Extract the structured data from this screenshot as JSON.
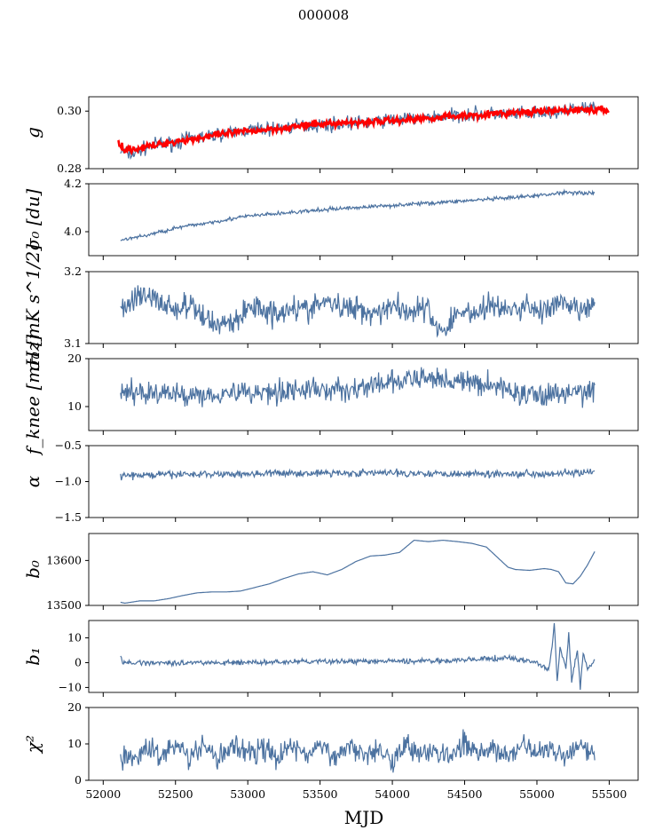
{
  "figure": {
    "title": "000008",
    "xlabel": "MJD"
  },
  "chart_data": [
    {
      "type": "line",
      "ylabel": "g",
      "xlim": [
        51900,
        55700
      ],
      "ylim": [
        0.28,
        0.305
      ],
      "yticks": [
        0.28,
        0.3
      ],
      "ytick_labels": [
        "0.28",
        "0.30"
      ],
      "series": [
        {
          "color": "#4c72a0",
          "x": [
            52120,
            52200,
            52300,
            52400,
            52500,
            52600,
            52700,
            52800,
            52900,
            53000,
            53200,
            53400,
            53600,
            53800,
            54000,
            54200,
            54400,
            54600,
            54800,
            55000,
            55200,
            55300,
            55400
          ],
          "values": [
            0.286,
            0.285,
            0.2875,
            0.2885,
            0.289,
            0.2905,
            0.291,
            0.292,
            0.2925,
            0.2935,
            0.294,
            0.295,
            0.2955,
            0.296,
            0.297,
            0.2975,
            0.2985,
            0.299,
            0.299,
            0.299,
            0.3,
            0.301,
            0.301
          ]
        },
        {
          "color": "#ff0000",
          "x": [
            52100,
            52150,
            52200,
            52300,
            52400,
            52500,
            52700,
            52900,
            53100,
            53300,
            53500,
            53700,
            53900,
            54100,
            54300,
            54500,
            54700,
            54900,
            55100,
            55300,
            55500
          ],
          "values": [
            0.29,
            0.2865,
            0.2868,
            0.2875,
            0.2885,
            0.2895,
            0.291,
            0.2925,
            0.2935,
            0.2945,
            0.2955,
            0.296,
            0.2965,
            0.297,
            0.2978,
            0.2985,
            0.299,
            0.2995,
            0.3,
            0.3005,
            0.3003
          ]
        }
      ]
    },
    {
      "type": "line",
      "ylabel": "σ₀ [du]",
      "xlim": [
        51900,
        55700
      ],
      "ylim": [
        3.9,
        4.2
      ],
      "yticks": [
        4.0,
        4.2
      ],
      "ytick_labels": [
        "4.0",
        "4.2"
      ],
      "series": [
        {
          "color": "#4c72a0",
          "x": [
            52120,
            52300,
            52500,
            52800,
            53000,
            53300,
            53600,
            54000,
            54400,
            54800,
            55000,
            55200,
            55400
          ],
          "values": [
            3.965,
            3.985,
            4.015,
            4.045,
            4.065,
            4.08,
            4.095,
            4.11,
            4.125,
            4.14,
            4.15,
            4.165,
            4.16
          ]
        }
      ]
    },
    {
      "type": "line",
      "ylabel": "σ₀ [mK s^1/2]",
      "xlim": [
        51900,
        55700
      ],
      "ylim": [
        3.1,
        3.2
      ],
      "yticks": [
        3.1,
        3.2
      ],
      "ytick_labels": [
        "3.1",
        "3.2"
      ],
      "series": [
        {
          "color": "#4c72a0",
          "x": [
            52120,
            52250,
            52400,
            52550,
            52700,
            52800,
            52900,
            53000,
            53200,
            53400,
            53600,
            53800,
            54000,
            54200,
            54350,
            54500,
            54700,
            54900,
            55100,
            55300,
            55400
          ],
          "values": [
            3.145,
            3.17,
            3.155,
            3.15,
            3.14,
            3.125,
            3.13,
            3.15,
            3.145,
            3.15,
            3.155,
            3.145,
            3.15,
            3.148,
            3.12,
            3.145,
            3.15,
            3.148,
            3.15,
            3.15,
            3.145
          ]
        }
      ]
    },
    {
      "type": "line",
      "ylabel": "f_knee [mHz]",
      "xlim": [
        51900,
        55700
      ],
      "ylim": [
        5,
        20
      ],
      "yticks": [
        10,
        20
      ],
      "ytick_labels": [
        "10",
        "20"
      ],
      "series": [
        {
          "color": "#4c72a0",
          "x": [
            52120,
            52300,
            52500,
            52700,
            52900,
            53100,
            53300,
            53500,
            53700,
            53900,
            54100,
            54300,
            54500,
            54700,
            54900,
            55100,
            55300,
            55400
          ],
          "values": [
            13,
            13,
            12.5,
            12.5,
            13,
            13,
            13.5,
            13.5,
            13.5,
            14.5,
            15.5,
            16,
            15,
            14.5,
            12.5,
            12.5,
            13,
            13.5
          ]
        }
      ]
    },
    {
      "type": "line",
      "ylabel": "α",
      "xlim": [
        51900,
        55700
      ],
      "ylim": [
        -1.5,
        -0.5
      ],
      "yticks": [
        -1.5,
        -1.0,
        -0.5
      ],
      "ytick_labels": [
        "−1.5",
        "−1.0",
        "−0.5"
      ],
      "series": [
        {
          "color": "#4c72a0",
          "x": [
            52120,
            52500,
            53000,
            53500,
            54000,
            54500,
            55000,
            55400
          ],
          "values": [
            -0.92,
            -0.9,
            -0.89,
            -0.88,
            -0.88,
            -0.89,
            -0.89,
            -0.87
          ]
        }
      ]
    },
    {
      "type": "line",
      "ylabel": "b₀",
      "xlim": [
        51900,
        55700
      ],
      "ylim": [
        13500,
        13660
      ],
      "yticks": [
        13500,
        13600
      ],
      "ytick_labels": [
        "13500",
        "13600"
      ],
      "series": [
        {
          "color": "#4c72a0",
          "x": [
            52120,
            52150,
            52250,
            52350,
            52450,
            52550,
            52650,
            52750,
            52850,
            52950,
            53050,
            53150,
            53250,
            53350,
            53450,
            53550,
            53650,
            53750,
            53850,
            53950,
            54050,
            54150,
            54250,
            54350,
            54450,
            54550,
            54650,
            54750,
            54800,
            54850,
            54950,
            55050,
            55100,
            55150,
            55200,
            55250,
            55300,
            55350,
            55400
          ],
          "values": [
            13507,
            13505,
            13510,
            13510,
            13515,
            13522,
            13528,
            13530,
            13530,
            13532,
            13540,
            13548,
            13560,
            13570,
            13575,
            13568,
            13580,
            13598,
            13610,
            13612,
            13618,
            13645,
            13642,
            13645,
            13642,
            13638,
            13630,
            13600,
            13585,
            13580,
            13578,
            13582,
            13580,
            13575,
            13550,
            13548,
            13565,
            13590,
            13620
          ]
        }
      ]
    },
    {
      "type": "line",
      "ylabel": "b₁",
      "xlim": [
        51900,
        55700
      ],
      "ylim": [
        -12,
        17
      ],
      "yticks": [
        -10,
        0,
        10
      ],
      "ytick_labels": [
        "−10",
        "0",
        "10"
      ],
      "series": [
        {
          "color": "#4c72a0",
          "x": [
            52120,
            52130,
            52200,
            52500,
            53000,
            53500,
            54000,
            54500,
            54800,
            55000,
            55080,
            55100,
            55120,
            55140,
            55160,
            55200,
            55220,
            55240,
            55280,
            55300,
            55320,
            55350,
            55400
          ],
          "values": [
            3,
            0,
            0,
            0,
            0,
            0.5,
            0.5,
            1,
            2,
            0,
            -3,
            4,
            16,
            -8,
            6,
            -2,
            11,
            -7,
            5,
            -10,
            4,
            -3,
            1
          ]
        }
      ]
    },
    {
      "type": "line",
      "ylabel": "χ²",
      "xlim": [
        51900,
        55700
      ],
      "ylim": [
        0,
        20
      ],
      "yticks": [
        0,
        10,
        20
      ],
      "ytick_labels": [
        "0",
        "10",
        "20"
      ],
      "xticks": [
        52000,
        52500,
        53000,
        53500,
        54000,
        54500,
        55000,
        55500
      ],
      "xtick_labels": [
        "52000",
        "52500",
        "53000",
        "53500",
        "54000",
        "54500",
        "55000",
        "55500"
      ],
      "series": [
        {
          "color": "#4c72a0",
          "x": [
            52120,
            52200,
            52300,
            52400,
            52500,
            52600,
            52700,
            52800,
            52900,
            53000,
            53100,
            53200,
            53300,
            53400,
            53500,
            53600,
            53700,
            53800,
            53900,
            54000,
            54100,
            54200,
            54300,
            54400,
            54500,
            54600,
            54700,
            54800,
            54900,
            55000,
            55100,
            55200,
            55300,
            55400
          ],
          "values": [
            7,
            5,
            9,
            7,
            10,
            6,
            9,
            6,
            10,
            7,
            9,
            6,
            10,
            7,
            9,
            6,
            10,
            7,
            9,
            6,
            10,
            7,
            9,
            6,
            10,
            7,
            9,
            6,
            10,
            7,
            9,
            6,
            11,
            7
          ]
        }
      ]
    }
  ]
}
